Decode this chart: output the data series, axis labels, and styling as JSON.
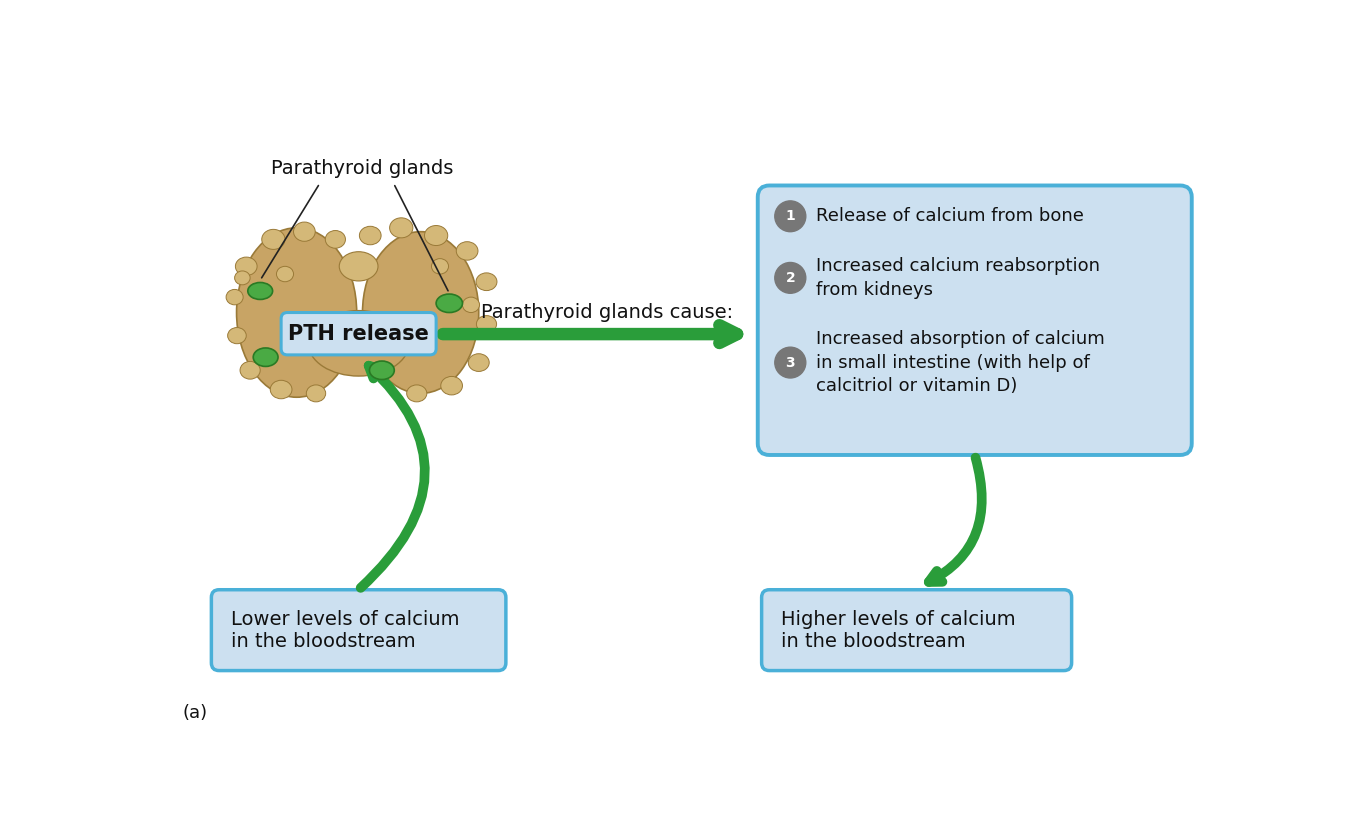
{
  "title": "(a)",
  "bg_color": "#ffffff",
  "box_fill_color": "#cce0f0",
  "box_edge_color": "#4ab0d8",
  "arrow_color": "#2a9d3a",
  "arrow_color2": "#1d7a2a",
  "label_parathyroid": "Parathyroid glands",
  "label_pth": "PTH release",
  "label_cause": "Parathyroid glands cause:",
  "label_item1": "Release of calcium from bone",
  "label_item2": "Increased calcium reabsorption\nfrom kidneys",
  "label_item3": "Increased absorption of calcium\nin small intestine (with help of\ncalcitriol or vitamin D)",
  "label_lower": "Lower levels of calcium\nin the bloodstream",
  "label_higher": "Higher levels of calcium\nin the bloodstream",
  "num_circle_color": "#777777",
  "num_text_color": "#ffffff",
  "text_color": "#111111",
  "gland_base": "#c8a465",
  "gland_bump": "#d4b878",
  "gland_edge": "#9a7a38",
  "pg_color": "#4aaa44",
  "pg_edge": "#2a7a24",
  "font_size_main": 14,
  "font_size_items": 13,
  "font_size_title": 13
}
